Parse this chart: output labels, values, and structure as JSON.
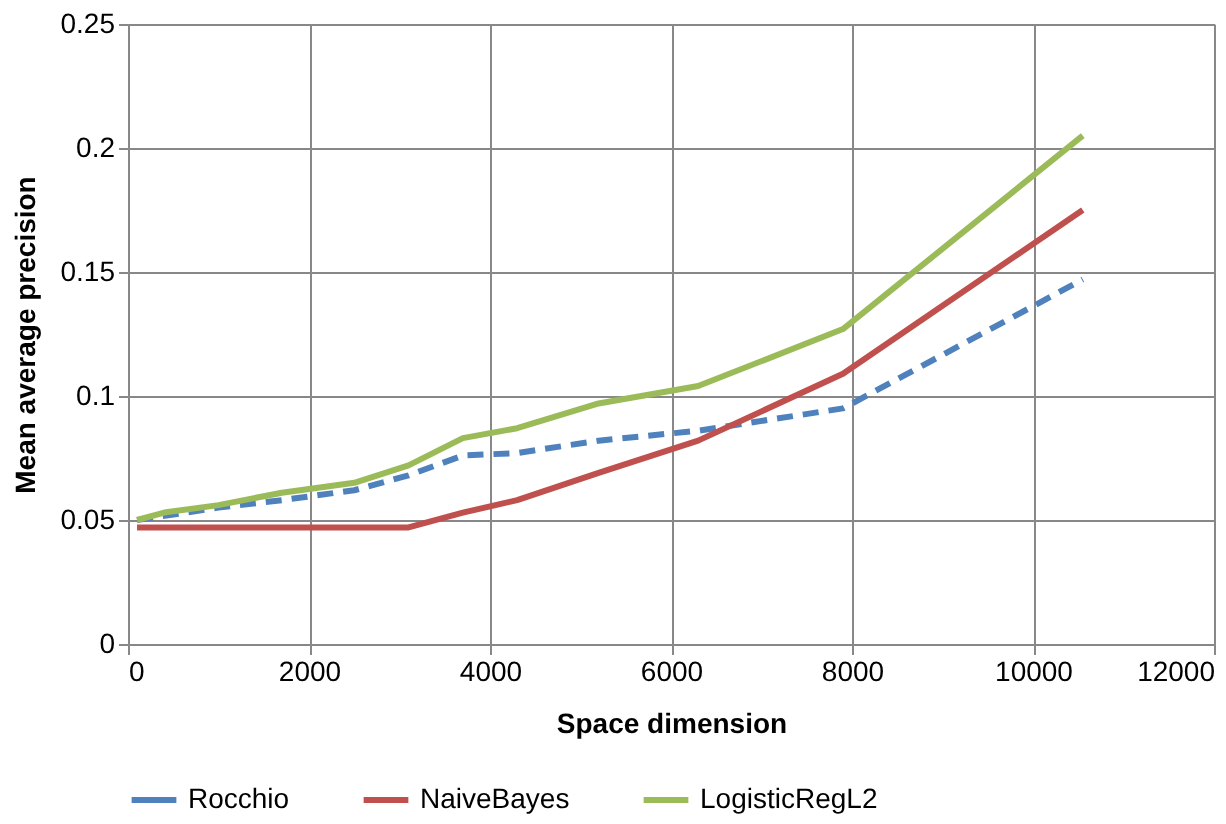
{
  "chart_data": {
    "type": "line",
    "xlabel": "Space dimension",
    "ylabel": "Mean average precision",
    "xlim": [
      0,
      12000
    ],
    "xticks": [
      0,
      2000,
      4000,
      6000,
      8000,
      10000,
      12000
    ],
    "ylim": [
      0,
      0.25
    ],
    "yticks": [
      0,
      0.05,
      0.1,
      0.15,
      0.2,
      0.25
    ],
    "grid": true,
    "legend": "bottom",
    "marker": "none",
    "series": [
      {
        "name": "Rocchio",
        "color": "#4f81bd",
        "line_style": "dashed",
        "x": [
          100,
          1000,
          1700,
          2500,
          3100,
          3700,
          4300,
          5200,
          6300,
          7900,
          10550
        ],
        "values": [
          0.05,
          0.055,
          0.058,
          0.062,
          0.068,
          0.076,
          0.077,
          0.082,
          0.086,
          0.095,
          0.147
        ]
      },
      {
        "name": "NaiveBayes",
        "color": "#c0504d",
        "line_style": "solid",
        "x": [
          100,
          3100,
          3700,
          4300,
          5200,
          6300,
          7900,
          10550
        ],
        "values": [
          0.047,
          0.047,
          0.053,
          0.058,
          0.069,
          0.082,
          0.109,
          0.175
        ]
      },
      {
        "name": "LogisticRegL2",
        "color": "#9bbb59",
        "line_style": "solid",
        "x": [
          100,
          400,
          1000,
          1700,
          2500,
          3100,
          3700,
          4300,
          5200,
          6300,
          7900,
          10550
        ],
        "values": [
          0.05,
          0.053,
          0.056,
          0.061,
          0.065,
          0.072,
          0.083,
          0.087,
          0.097,
          0.104,
          0.127,
          0.205
        ]
      }
    ]
  }
}
